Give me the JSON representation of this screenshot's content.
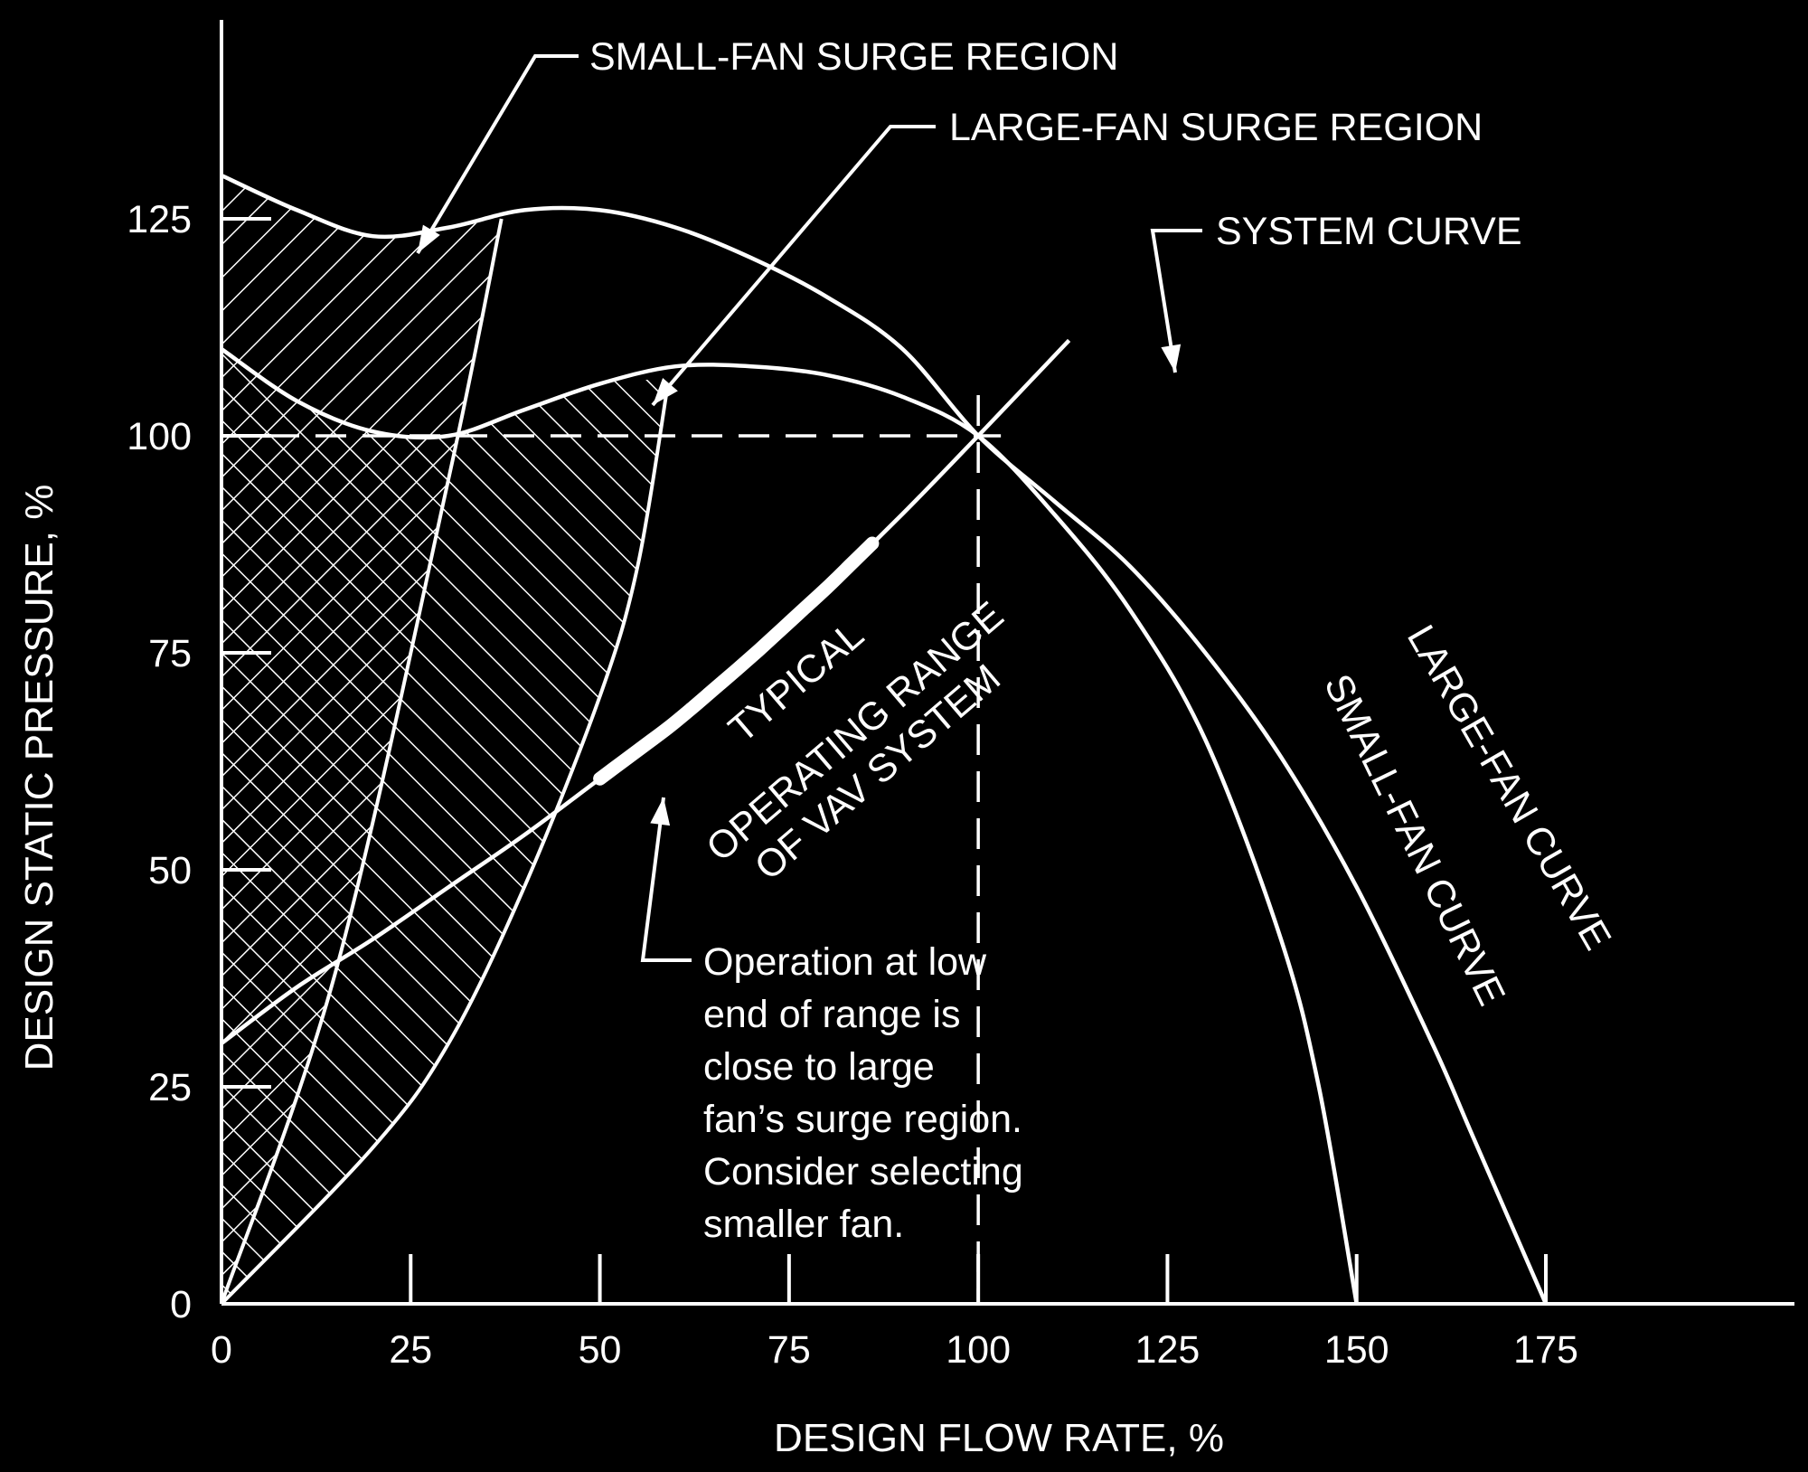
{
  "chart_data": {
    "type": "line",
    "title": "",
    "xlabel": "DESIGN FLOW RATE, %",
    "ylabel": "DESIGN STATIC PRESSURE, %",
    "xlim": [
      0,
      180
    ],
    "ylim": [
      0,
      150
    ],
    "xticks": [
      0,
      25,
      50,
      75,
      100,
      125,
      150,
      175
    ],
    "yticks": [
      0,
      25,
      50,
      75,
      100,
      125
    ],
    "grid": false,
    "legend": "none",
    "colors": {
      "background": "#000000",
      "foreground": "#ffffff"
    },
    "series": [
      {
        "name": "LARGE-FAN CURVE",
        "x": [
          0,
          10,
          20,
          30,
          40,
          50,
          60,
          70,
          80,
          90,
          100,
          110,
          120,
          130,
          140,
          150,
          160,
          165,
          170,
          175
        ],
        "y": [
          130,
          126,
          123,
          124,
          126,
          126,
          124,
          120.5,
          116,
          110,
          100,
          92.5,
          85,
          75,
          63,
          48,
          30,
          20,
          10,
          0
        ]
      },
      {
        "name": "SMALL-FAN CURVE",
        "x": [
          0,
          10,
          20,
          30,
          40,
          50,
          60,
          70,
          80,
          90,
          100,
          110,
          120,
          130,
          140,
          145,
          150
        ],
        "y": [
          110,
          104,
          100.5,
          100,
          103,
          106,
          108,
          108,
          107,
          104.5,
          100,
          91,
          80,
          65,
          42,
          25,
          0
        ]
      },
      {
        "name": "SYSTEM CURVE",
        "x": [
          0,
          10,
          20,
          30,
          40,
          50,
          60,
          70,
          80,
          90,
          100,
          112
        ],
        "y": [
          30,
          36.5,
          42,
          48,
          54,
          60.5,
          67,
          74.5,
          82.5,
          91,
          100,
          111
        ]
      }
    ],
    "surge_boundaries": [
      {
        "name": "small-fan surge line",
        "x": [
          0,
          15,
          30,
          37
        ],
        "y": [
          0,
          38,
          95,
          125
        ]
      },
      {
        "name": "large-fan surge line",
        "x": [
          0,
          20,
          30,
          40,
          50,
          55,
          59
        ],
        "y": [
          0,
          18,
          30,
          48,
          70,
          85,
          106
        ]
      }
    ],
    "operating_range": {
      "x": [
        50,
        86
      ],
      "y": [
        60.5,
        87
      ]
    },
    "design_point": {
      "x": 100,
      "y": 100
    },
    "annotations": [
      {
        "text": "SMALL-FAN SURGE REGION"
      },
      {
        "text": "LARGE-FAN SURGE REGION"
      },
      {
        "text": "SYSTEM CURVE"
      },
      {
        "text": "TYPICAL"
      },
      {
        "text": "OPERATING RANGE"
      },
      {
        "text": "OF VAV SYSTEM"
      },
      {
        "text": "Operation at low"
      },
      {
        "text": "end of range is"
      },
      {
        "text": "close to large"
      },
      {
        "text": "fan’s surge region."
      },
      {
        "text": "Consider selecting"
      },
      {
        "text": "smaller fan."
      }
    ],
    "curve_labels": {
      "large_fan": "LARGE-FAN CURVE",
      "small_fan": "SMALL-FAN CURVE"
    }
  }
}
